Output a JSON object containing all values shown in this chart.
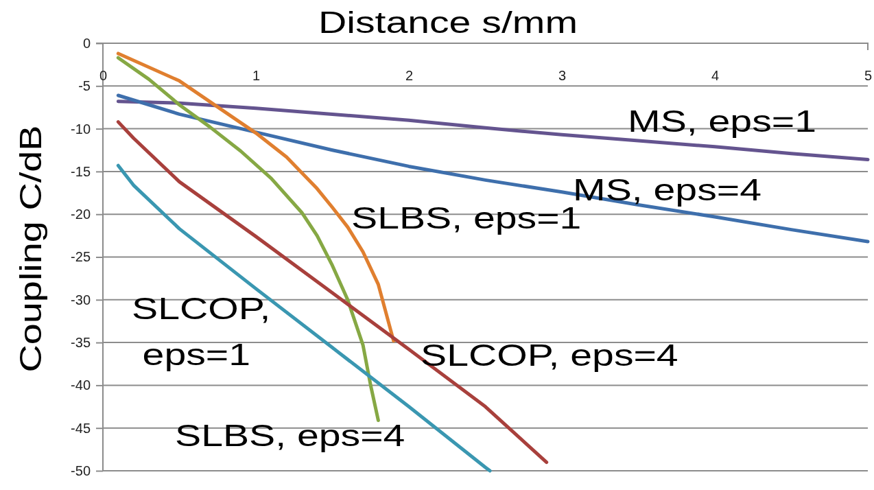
{
  "chart_data": {
    "type": "line",
    "xlabel": "Distance s/mm",
    "ylabel": "Coupling C/dB",
    "xlim": [
      0,
      5
    ],
    "xticks": [
      0,
      1,
      2,
      3,
      4,
      5
    ],
    "ylim": [
      -50,
      0
    ],
    "yticks": [
      0,
      -5,
      -10,
      -15,
      -20,
      -25,
      -30,
      -35,
      -40,
      -45,
      -50
    ],
    "grid": "y",
    "marker": "none",
    "line_style": "solid",
    "series": [
      {
        "color": "#64548f",
        "x": [
          0.1,
          0.5,
          1,
          1.5,
          2,
          2.5,
          3,
          3.5,
          4,
          4.5,
          5
        ],
        "values": [
          -6.8,
          -7.0,
          -7.6,
          -8.3,
          -9.0,
          -9.9,
          -10.7,
          -11.4,
          -12.1,
          -12.9,
          -13.6
        ]
      },
      {
        "color": "#3e6fac",
        "x": [
          0.1,
          0.5,
          1,
          1.5,
          2,
          2.5,
          3,
          3.5,
          4,
          4.5,
          5
        ],
        "values": [
          -6.1,
          -8.3,
          -10.4,
          -12.5,
          -14.4,
          -16.0,
          -17.4,
          -18.9,
          -20.3,
          -21.8,
          -23.2
        ]
      },
      {
        "color": "#e07f2f",
        "x": [
          0.1,
          0.5,
          1,
          1.2,
          1.4,
          1.5,
          1.6,
          1.7,
          1.8,
          1.9
        ],
        "values": [
          -1.2,
          -4.4,
          -10.5,
          -13.3,
          -17.0,
          -19.2,
          -21.5,
          -24.4,
          -28.2,
          -34.8
        ]
      },
      {
        "color": "#86a844",
        "x": [
          0.1,
          0.3,
          0.5,
          0.7,
          0.9,
          1.1,
          1.3,
          1.4,
          1.5,
          1.6,
          1.7,
          1.75,
          1.8
        ],
        "values": [
          -1.7,
          -4.2,
          -7.2,
          -9.8,
          -12.6,
          -15.8,
          -19.8,
          -22.5,
          -26.0,
          -30.0,
          -35.3,
          -40.0,
          -44.1
        ]
      },
      {
        "color": "#a8403c",
        "x": [
          0.1,
          0.2,
          0.5,
          1,
          1.5,
          2,
          2.5,
          2.9
        ],
        "values": [
          -9.2,
          -11.1,
          -16.2,
          -22.6,
          -29.2,
          -35.8,
          -42.5,
          -49.0
        ]
      },
      {
        "color": "#3a97b1",
        "x": [
          0.1,
          0.2,
          0.5,
          1,
          1.5,
          2,
          2.5,
          2.53
        ],
        "values": [
          -14.3,
          -16.6,
          -21.7,
          -28.7,
          -35.6,
          -42.5,
          -49.6,
          -50
        ]
      }
    ],
    "annotations": [
      "MS, eps=1",
      "MS, eps=4",
      "SLBS, eps=1",
      "SLCOP, eps=4",
      "SLBS, eps=4",
      "SLCOP,\neps=1"
    ]
  }
}
